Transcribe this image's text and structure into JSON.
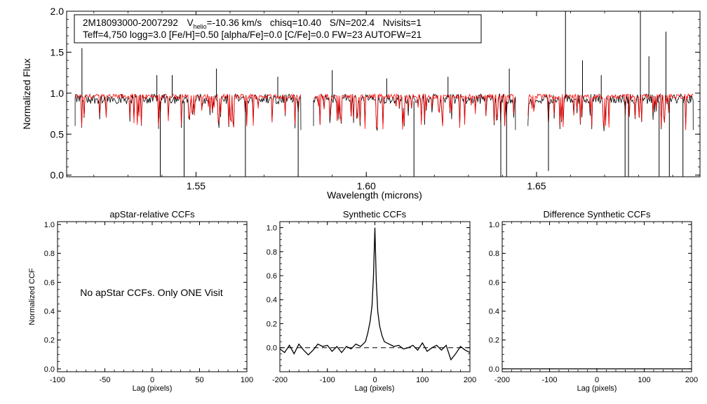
{
  "chart_data": [
    {
      "type": "line",
      "id": "spectrum",
      "xlabel": "Wavelength (microns)",
      "ylabel": "Normalized Flux",
      "xlim": [
        1.512,
        1.698
      ],
      "ylim": [
        -0.02,
        2.0
      ],
      "xticks": [
        {
          "value": 1.55,
          "label": "1.55"
        },
        {
          "value": 1.6,
          "label": "1.60"
        },
        {
          "value": 1.65,
          "label": "1.65"
        }
      ],
      "yticks": [
        {
          "value": 0.0,
          "label": "0.0"
        },
        {
          "value": 0.5,
          "label": "0.5"
        },
        {
          "value": 1.0,
          "label": "1.0"
        },
        {
          "value": 1.5,
          "label": "1.5"
        },
        {
          "value": 2.0,
          "label": "2.0"
        }
      ],
      "annotation": {
        "star_id": "2M18093000-2007292",
        "v_prefix": "V",
        "v_sub": "helio",
        "v_value": "=-10.36 km/s",
        "chisq": "chisq=10.40",
        "snr": "S/N=202.4",
        "nvisits": "Nvisits=1",
        "params": "Teff=4,750 logg=3.0 [Fe/H]=0.50 [alpha/Fe]=0.0 [C/Fe]=0.0 FW=23 AUTOFW=21"
      },
      "chips": [
        [
          1.5145,
          1.5808
        ],
        [
          1.5845,
          1.6438
        ],
        [
          1.6475,
          1.696
        ]
      ],
      "series": [
        {
          "name": "Observed spectrum",
          "color": "#000000",
          "continuum": 0.93
        },
        {
          "name": "Synthetic fit",
          "color": "#ff0000",
          "continuum": 0.96
        }
      ],
      "spikes": [
        {
          "x": 1.5165,
          "y": 1.55
        },
        {
          "x": 1.5385,
          "y": 1.22
        },
        {
          "x": 1.543,
          "y": 1.22
        },
        {
          "x": 1.556,
          "y": 1.3
        },
        {
          "x": 1.574,
          "y": 1.2
        },
        {
          "x": 1.59,
          "y": 1.28
        },
        {
          "x": 1.606,
          "y": 1.18
        },
        {
          "x": 1.624,
          "y": 1.2
        },
        {
          "x": 1.642,
          "y": 1.3
        },
        {
          "x": 1.6585,
          "y": 2.0
        },
        {
          "x": 1.6635,
          "y": 1.4
        },
        {
          "x": 1.669,
          "y": 1.22
        },
        {
          "x": 1.6805,
          "y": 2.0
        },
        {
          "x": 1.683,
          "y": 1.45
        },
        {
          "x": 1.688,
          "y": 1.75
        }
      ],
      "dips": [
        {
          "x": 1.5395,
          "y": -0.02
        },
        {
          "x": 1.5465,
          "y": -0.02
        },
        {
          "x": 1.5645,
          "y": -0.02
        },
        {
          "x": 1.58,
          "y": -0.02
        },
        {
          "x": 1.614,
          "y": -0.02
        },
        {
          "x": 1.6395,
          "y": -0.02
        },
        {
          "x": 1.6412,
          "y": -0.02
        },
        {
          "x": 1.6535,
          "y": 0.05
        },
        {
          "x": 1.676,
          "y": -0.02
        },
        {
          "x": 1.677,
          "y": -0.02
        },
        {
          "x": 1.686,
          "y": -0.02
        },
        {
          "x": 1.689,
          "y": -0.02
        },
        {
          "x": 1.693,
          "y": -0.02
        }
      ]
    },
    {
      "type": "line",
      "id": "apstar-ccf",
      "title": "apStar-relative CCFs",
      "xlabel": "Lag (pixels)",
      "ylabel": "Normalized CCF",
      "xlim": [
        -100,
        100
      ],
      "ylim": [
        -0.02,
        1.02
      ],
      "xticks": [
        {
          "value": -100,
          "label": "-100"
        },
        {
          "value": -50,
          "label": "-50"
        },
        {
          "value": 0,
          "label": "0"
        },
        {
          "value": 50,
          "label": "50"
        },
        {
          "value": 100,
          "label": "100"
        }
      ],
      "yticks": [
        {
          "value": 0.0,
          "label": "0.0"
        },
        {
          "value": 0.2,
          "label": "0.2"
        },
        {
          "value": 0.4,
          "label": "0.4"
        },
        {
          "value": 0.6,
          "label": "0.6"
        },
        {
          "value": 0.8,
          "label": "0.8"
        },
        {
          "value": 1.0,
          "label": "1.0"
        }
      ],
      "message": "No apStar CCFs.  Only ONE Visit",
      "series": []
    },
    {
      "type": "line",
      "id": "synthetic-ccf",
      "title": "Synthetic CCFs",
      "xlabel": "Lag (pixels)",
      "xlim": [
        -200,
        200
      ],
      "ylim": [
        -0.2,
        1.05
      ],
      "xticks": [
        {
          "value": -200,
          "label": "-200"
        },
        {
          "value": -100,
          "label": "-100"
        },
        {
          "value": 0,
          "label": "0"
        },
        {
          "value": 100,
          "label": "100"
        },
        {
          "value": 200,
          "label": "200"
        }
      ],
      "yticks": [
        {
          "value": 0.0,
          "label": "0.0"
        },
        {
          "value": 0.2,
          "label": "0.2"
        },
        {
          "value": 0.4,
          "label": "0.4"
        },
        {
          "value": 0.6,
          "label": "0.6"
        },
        {
          "value": 0.8,
          "label": "0.8"
        },
        {
          "value": 1.0,
          "label": "1.0"
        }
      ],
      "zero_line": {
        "y": 0.0,
        "style": "dashed"
      },
      "series": [
        {
          "name": "CCF",
          "color": "#000000",
          "x": [
            -200,
            -190,
            -180,
            -170,
            -160,
            -150,
            -140,
            -130,
            -120,
            -110,
            -100,
            -90,
            -80,
            -70,
            -60,
            -50,
            -40,
            -30,
            -20,
            -15,
            -10,
            -6,
            -3,
            0,
            3,
            6,
            10,
            15,
            20,
            30,
            40,
            50,
            60,
            70,
            80,
            90,
            100,
            110,
            120,
            130,
            140,
            150,
            160,
            170,
            180,
            190,
            200
          ],
          "y": [
            -0.01,
            -0.04,
            0.02,
            -0.05,
            0.03,
            -0.02,
            -0.06,
            -0.02,
            0.03,
            0.01,
            0.02,
            -0.03,
            0.01,
            -0.04,
            0.01,
            -0.01,
            0.03,
            0.01,
            0.05,
            0.12,
            0.22,
            0.35,
            0.6,
            1.0,
            0.55,
            0.3,
            0.18,
            0.1,
            0.05,
            0.03,
            0.01,
            0.02,
            -0.01,
            0.0,
            0.02,
            -0.02,
            0.04,
            -0.03,
            0.0,
            0.02,
            -0.02,
            0.02,
            -0.1,
            -0.05,
            0.01,
            -0.02,
            -0.04
          ]
        }
      ]
    },
    {
      "type": "line",
      "id": "difference-ccf",
      "title": "Difference Synthetic CCFs",
      "xlabel": "Lag (pixels)",
      "xlim": [
        -200,
        200
      ],
      "ylim": [
        -0.02,
        1.02
      ],
      "xticks": [
        {
          "value": -200,
          "label": "-200"
        },
        {
          "value": -100,
          "label": "-100"
        },
        {
          "value": 0,
          "label": "0"
        },
        {
          "value": 100,
          "label": "100"
        },
        {
          "value": 200,
          "label": "200"
        }
      ],
      "yticks": [
        {
          "value": 0.0,
          "label": "0.0"
        },
        {
          "value": 0.2,
          "label": "0.2"
        },
        {
          "value": 0.4,
          "label": "0.4"
        },
        {
          "value": 0.6,
          "label": "0.6"
        },
        {
          "value": 0.8,
          "label": "0.8"
        },
        {
          "value": 1.0,
          "label": "1.0"
        }
      ],
      "series": [
        {
          "name": "Difference CCF",
          "color": "#000000",
          "x": [
            -200,
            200
          ],
          "y": [
            0.0,
            0.0
          ]
        }
      ]
    }
  ]
}
